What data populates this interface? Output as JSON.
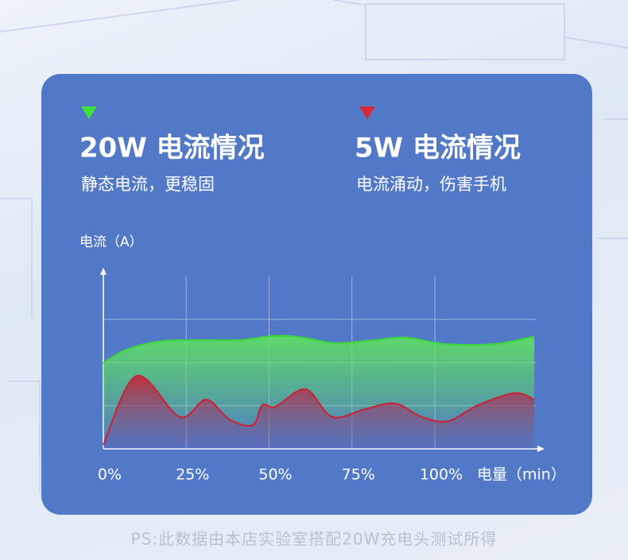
{
  "chart_data": {
    "type": "line",
    "y_axis_label": "电流（A）",
    "x_axis_label": "电量（min）",
    "xlim": [
      0,
      132
    ],
    "ylim": [
      0,
      4.2
    ],
    "xticks": [
      {
        "value": 0,
        "label": "0%"
      },
      {
        "value": 25,
        "label": "25%"
      },
      {
        "value": 50,
        "label": "50%"
      },
      {
        "value": 75,
        "label": "75%"
      },
      {
        "value": 100,
        "label": "100%"
      }
    ],
    "yticks": [
      1,
      2,
      3
    ],
    "ytick_labels": false,
    "grid": true,
    "series": [
      {
        "name": "20W 电流情况",
        "description": "静态电流，更稳固",
        "color": "#3ed43e",
        "x": [
          0,
          7,
          17,
          29,
          41,
          52,
          60,
          70,
          82,
          91,
          103,
          118,
          130
        ],
        "values": [
          1.99,
          2.3,
          2.49,
          2.52,
          2.52,
          2.62,
          2.58,
          2.45,
          2.52,
          2.58,
          2.43,
          2.43,
          2.6
        ]
      },
      {
        "name": "5W 电流情况",
        "description": "电流涌动，伤害手机",
        "color": "#c3283a",
        "x": [
          0,
          10,
          23,
          31,
          38,
          45,
          48,
          52,
          61,
          69,
          79,
          88,
          96,
          104,
          113,
          124,
          130
        ],
        "values": [
          0.09,
          1.69,
          0.74,
          1.14,
          0.68,
          0.55,
          1.01,
          0.98,
          1.38,
          0.74,
          0.92,
          1.05,
          0.74,
          0.64,
          1.01,
          1.29,
          1.14
        ]
      }
    ],
    "note": "PS:此数据由本店实验室搭配20W充电头测试所得"
  }
}
